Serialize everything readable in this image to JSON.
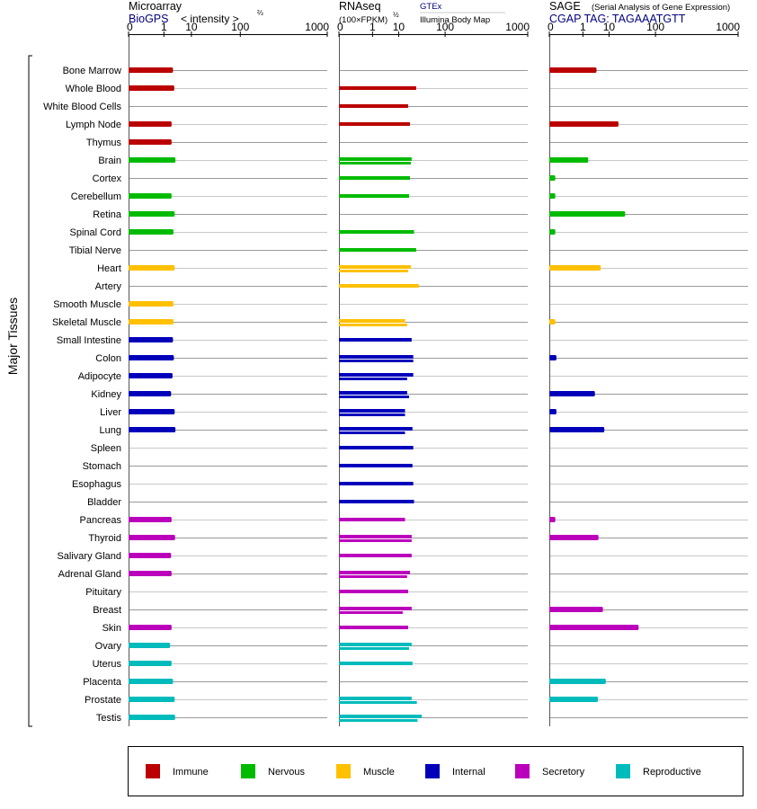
{
  "labels": {
    "y_axis": "Major Tissues",
    "panel1_title": "Microarray",
    "panel1_source": "BioGPS",
    "panel1_units": "< intensity >",
    "panel1_exponent": "⅔",
    "panel2_title": "RNAseq",
    "panel2_source": "GTEx",
    "panel2_units": "(100×FPKM)",
    "panel2_exponent": "½",
    "panel2_source2": "Illumina Body Map",
    "panel3_title": "SAGE",
    "panel3_subtitle": "(Serial Analysis of Gene Expression)",
    "panel3_source": "CGAP TAG: TAGAAATGTT"
  },
  "colors": {
    "Immune": "#bb0000",
    "Nervous": "#00bb00",
    "Muscle": "#ffc000",
    "Internal": "#0000bb",
    "Secretory": "#bb00bb",
    "Reproductive": "#00bbbb",
    "source_text": "#000080"
  },
  "chart_data": {
    "type": "bar",
    "orientation": "horizontal",
    "axis_ticks": [
      "0",
      "1",
      "10",
      "100",
      "1000"
    ],
    "axis_tick_values": [
      0,
      1,
      10,
      100,
      1000
    ],
    "axis_scale": "x^(1/4)",
    "tissues": [
      {
        "name": "Bone Marrow",
        "system": "Immune",
        "microarray": 2.5,
        "gtex": null,
        "ibm": null,
        "sage": 3.9
      },
      {
        "name": "Whole Blood",
        "system": "Immune",
        "microarray": 2.8,
        "gtex": 28,
        "ibm": null,
        "sage": null
      },
      {
        "name": "White Blood Cells",
        "system": "Immune",
        "microarray": null,
        "gtex": 18,
        "ibm": null,
        "sage": null
      },
      {
        "name": "Lymph Node",
        "system": "Immune",
        "microarray": 2.2,
        "gtex": 20,
        "ibm": null,
        "sage": 18
      },
      {
        "name": "Thymus",
        "system": "Immune",
        "microarray": 2.2,
        "gtex": null,
        "ibm": null,
        "sage": null
      },
      {
        "name": "Brain",
        "system": "Nervous",
        "microarray": 3.1,
        "gtex": 22,
        "ibm": 21,
        "sage": 1.8
      },
      {
        "name": "Cortex",
        "system": "Nervous",
        "microarray": null,
        "gtex": 20,
        "ibm": null,
        "sage": 0.001
      },
      {
        "name": "Cerebellum",
        "system": "Nervous",
        "microarray": 2.2,
        "gtex": 19,
        "ibm": null,
        "sage": 0.001
      },
      {
        "name": "Retina",
        "system": "Nervous",
        "microarray": 2.9,
        "gtex": null,
        "ibm": null,
        "sage": 26
      },
      {
        "name": "Spinal Cord",
        "system": "Nervous",
        "microarray": 2.6,
        "gtex": 25,
        "ibm": null,
        "sage": 0.001
      },
      {
        "name": "Tibial Nerve",
        "system": "Nervous",
        "microarray": null,
        "gtex": 28,
        "ibm": null,
        "sage": null
      },
      {
        "name": "Heart",
        "system": "Muscle",
        "microarray": 2.9,
        "gtex": 21,
        "ibm": 18,
        "sage": 5.5
      },
      {
        "name": "Artery",
        "system": "Muscle",
        "microarray": null,
        "gtex": 32,
        "ibm": null,
        "sage": null
      },
      {
        "name": "Smooth Muscle",
        "system": "Muscle",
        "microarray": 2.6,
        "gtex": null,
        "ibm": null,
        "sage": null
      },
      {
        "name": "Skeletal Muscle",
        "system": "Muscle",
        "microarray": 2.6,
        "gtex": 15,
        "ibm": 17,
        "sage": 0.001
      },
      {
        "name": "Small Intestine",
        "system": "Internal",
        "microarray": 2.5,
        "gtex": 22,
        "ibm": null,
        "sage": null
      },
      {
        "name": "Colon",
        "system": "Internal",
        "microarray": 2.7,
        "gtex": 24,
        "ibm": 24,
        "sage": 0.002
      },
      {
        "name": "Adipocyte",
        "system": "Internal",
        "microarray": 2.4,
        "gtex": 24,
        "ibm": 17,
        "sage": null
      },
      {
        "name": "Kidney",
        "system": "Internal",
        "microarray": 2.1,
        "gtex": 17,
        "ibm": 19,
        "sage": 3.4
      },
      {
        "name": "Liver",
        "system": "Internal",
        "microarray": 2.9,
        "gtex": 15,
        "ibm": 15,
        "sage": 0.002
      },
      {
        "name": "Lung",
        "system": "Internal",
        "microarray": 3.1,
        "gtex": 23,
        "ibm": 15,
        "sage": 7.2
      },
      {
        "name": "Spleen",
        "system": "Internal",
        "microarray": null,
        "gtex": 24,
        "ibm": null,
        "sage": null
      },
      {
        "name": "Stomach",
        "system": "Internal",
        "microarray": null,
        "gtex": 23,
        "ibm": null,
        "sage": null
      },
      {
        "name": "Esophagus",
        "system": "Internal",
        "microarray": null,
        "gtex": 24,
        "ibm": null,
        "sage": null
      },
      {
        "name": "Bladder",
        "system": "Internal",
        "microarray": null,
        "gtex": 25,
        "ibm": null,
        "sage": null
      },
      {
        "name": "Pancreas",
        "system": "Secretory",
        "microarray": 2.2,
        "gtex": 15,
        "ibm": null,
        "sage": 0.001
      },
      {
        "name": "Thyroid",
        "system": "Secretory",
        "microarray": 3.0,
        "gtex": 22,
        "ibm": 22,
        "sage": 4.6
      },
      {
        "name": "Salivary Gland",
        "system": "Secretory",
        "microarray": 2.1,
        "gtex": 22,
        "ibm": null,
        "sage": null
      },
      {
        "name": "Adrenal Gland",
        "system": "Secretory",
        "microarray": 2.2,
        "gtex": 20,
        "ibm": 17,
        "sage": null
      },
      {
        "name": "Pituitary",
        "system": "Secretory",
        "microarray": null,
        "gtex": 18,
        "ibm": null,
        "sage": null
      },
      {
        "name": "Breast",
        "system": "Secretory",
        "microarray": null,
        "gtex": 22,
        "ibm": 13,
        "sage": 6.5
      },
      {
        "name": "Skin",
        "system": "Secretory",
        "microarray": 2.2,
        "gtex": 18,
        "ibm": null,
        "sage": 50
      },
      {
        "name": "Ovary",
        "system": "Reproductive",
        "microarray": 1.9,
        "gtex": 22,
        "ibm": 19,
        "sage": null
      },
      {
        "name": "Uterus",
        "system": "Reproductive",
        "microarray": 2.2,
        "gtex": 23,
        "ibm": null,
        "sage": null
      },
      {
        "name": "Placenta",
        "system": "Reproductive",
        "microarray": 2.5,
        "gtex": null,
        "ibm": null,
        "sage": 8.0
      },
      {
        "name": "Prostate",
        "system": "Reproductive",
        "microarray": 2.9,
        "gtex": 22,
        "ibm": 29,
        "sage": 4.4
      },
      {
        "name": "Testis",
        "system": "Reproductive",
        "microarray": 3.0,
        "gtex": 37,
        "ibm": 30,
        "sage": null
      }
    ],
    "legend": [
      {
        "label": "Immune",
        "system": "Immune"
      },
      {
        "label": "Nervous",
        "system": "Nervous"
      },
      {
        "label": "Muscle",
        "system": "Muscle"
      },
      {
        "label": "Internal",
        "system": "Internal"
      },
      {
        "label": "Secretory",
        "system": "Secretory"
      },
      {
        "label": "Reproductive",
        "system": "Reproductive"
      }
    ]
  }
}
